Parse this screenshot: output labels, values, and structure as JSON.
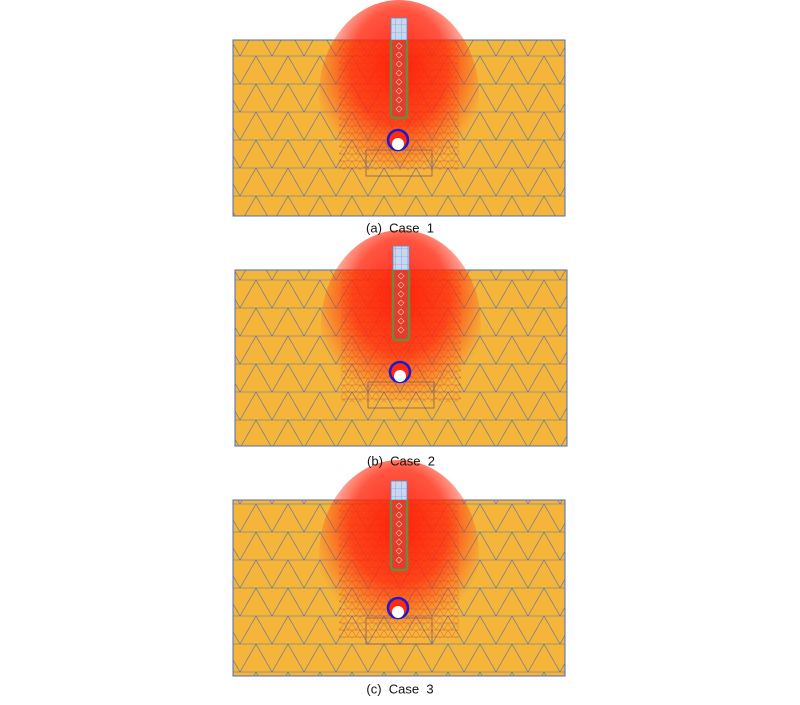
{
  "figures": [
    {
      "caption": "(a)  Case  1"
    },
    {
      "caption": "(b)  Case  2"
    },
    {
      "caption": "(c)  Case  3"
    }
  ]
}
